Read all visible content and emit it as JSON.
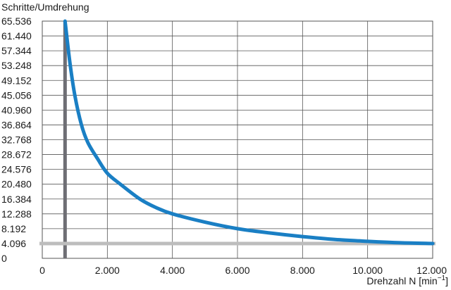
{
  "chart_data": {
    "type": "line",
    "ylabel": "Schritte/Umdrehung",
    "xlabel": "Drehzahl N [min",
    "xlabel_sup": "−1",
    "xlabel_end": "]",
    "xlim": [
      0,
      12000
    ],
    "ylim": [
      0,
      69632
    ],
    "x_ticks": [
      "0",
      "2.000",
      "4.000",
      "6.000",
      "8.000",
      "10.000",
      "12.000"
    ],
    "x_tick_values": [
      0,
      2000,
      4000,
      6000,
      8000,
      10000,
      12000
    ],
    "y_ticks": [
      "0",
      "4.096",
      "8.192",
      "12.288",
      "16.384",
      "20.480",
      "24.576",
      "28.672",
      "32.768",
      "36.864",
      "40.960",
      "45.056",
      "49.152",
      "53.248",
      "57.344",
      "61.440",
      "65.536"
    ],
    "y_tick_values": [
      0,
      4096,
      8192,
      12288,
      16384,
      20480,
      24576,
      28672,
      32768,
      36864,
      40960,
      45056,
      49152,
      53248,
      57344,
      61440,
      65536
    ],
    "grid": true,
    "series": [
      {
        "color": "#1a7fc4",
        "x": [
          700,
          850,
          1000,
          1200,
          1400,
          1700,
          2000,
          2400,
          3000,
          3500,
          4000,
          5000,
          6000,
          7000,
          8000,
          9000,
          10000,
          11000,
          12000
        ],
        "y": [
          65536,
          54000,
          45056,
          37000,
          32000,
          27500,
          23500,
          20480,
          16384,
          14000,
          12288,
          10000,
          8192,
          7000,
          6000,
          5200,
          4700,
          4300,
          4096
        ]
      }
    ],
    "reference_lines": [
      {
        "orientation": "vertical",
        "value": 700,
        "color": "#6e6e74"
      },
      {
        "orientation": "horizontal",
        "value": 4096,
        "color": "#bdbdbd"
      }
    ]
  }
}
